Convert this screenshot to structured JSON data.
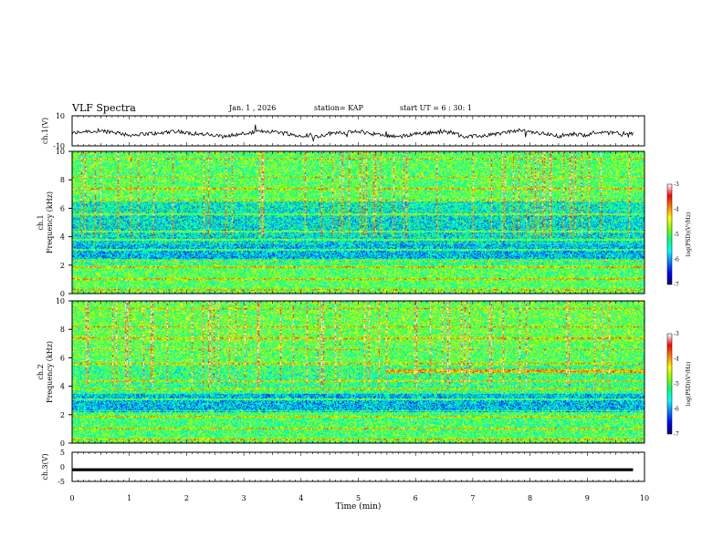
{
  "header": {
    "title": "VLF Spectra",
    "date": "Jan. 1 , 2026",
    "station": "station= KAP",
    "start": "start UT = 6 : 30: 1"
  },
  "colors": {
    "colormap": [
      "#000080",
      "#0000ff",
      "#0080ff",
      "#00ffff",
      "#00ff80",
      "#80ff00",
      "#ffff00",
      "#ff8000",
      "#ff0000",
      "#ffffff"
    ],
    "trace": "#000000"
  },
  "chart_data": [
    {
      "type": "line",
      "name": "ch1-waveform",
      "ylabel": "ch.1(V)",
      "xlim": [
        0,
        10
      ],
      "ylim": [
        -10,
        10
      ],
      "yticks": [
        10,
        -10
      ],
      "x_end": 9.8,
      "description_values": "noisy waveform oscillating roughly between -4 and 2 V with a mean near -2 V"
    },
    {
      "type": "heatmap",
      "name": "ch1-spectrogram",
      "ylabel": "ch.1\nFrequency (kHz)",
      "ylabel_line1": "ch.1",
      "ylabel_line2": "Frequency (kHz)",
      "xlim": [
        0,
        10
      ],
      "ylim": [
        0,
        10
      ],
      "yticks": [
        0,
        2,
        4,
        6,
        8,
        10
      ],
      "colorbar": {
        "label": "log(PSD)(V²/Hz)",
        "ticks": [
          -3,
          -4,
          -5,
          -6,
          -7
        ],
        "range": [
          -7,
          -3
        ]
      },
      "bands": [
        {
          "from": 0.0,
          "to": 0.5,
          "level": -5.0
        },
        {
          "from": 0.5,
          "to": 2.0,
          "level": -5.0
        },
        {
          "from": 2.0,
          "to": 2.5,
          "level": -5.2
        },
        {
          "from": 2.5,
          "to": 3.5,
          "level": -5.8
        },
        {
          "from": 3.5,
          "to": 5.5,
          "level": -5.6
        },
        {
          "from": 5.5,
          "to": 6.5,
          "level": -5.5
        },
        {
          "from": 6.5,
          "to": 10.0,
          "level": -5.0
        }
      ]
    },
    {
      "type": "heatmap",
      "name": "ch2-spectrogram",
      "ylabel_line1": "ch.2",
      "ylabel_line2": "Frequency (kHz)",
      "xlim": [
        0,
        10
      ],
      "ylim": [
        0,
        10
      ],
      "yticks": [
        0,
        2,
        4,
        6,
        8,
        10
      ],
      "colorbar": {
        "label": "log(PSD)(V²/Hz)",
        "ticks": [
          -3,
          -4,
          -5,
          -6,
          -7
        ],
        "range": [
          -7,
          -3
        ]
      },
      "bands": [
        {
          "from": 0.0,
          "to": 0.5,
          "level": -5.0
        },
        {
          "from": 0.5,
          "to": 2.2,
          "level": -5.1
        },
        {
          "from": 2.2,
          "to": 3.5,
          "level": -5.8
        },
        {
          "from": 3.5,
          "to": 5.5,
          "level": -5.2
        },
        {
          "from": 5.5,
          "to": 7.0,
          "level": -5.0
        },
        {
          "from": 7.0,
          "to": 10.0,
          "level": -4.9
        }
      ]
    },
    {
      "type": "line",
      "name": "ch3-waveform",
      "ylabel": "ch.3(V)",
      "xlim": [
        0,
        10
      ],
      "ylim": [
        -5,
        5
      ],
      "yticks": [
        5,
        0,
        -5
      ],
      "x_end": 9.8,
      "band_center": -1.0,
      "band_halfwidth": 0.5
    }
  ],
  "x_axis": {
    "label": "Time (min)",
    "ticks": [
      0,
      1,
      2,
      3,
      4,
      5,
      6,
      7,
      8,
      9,
      10
    ]
  }
}
